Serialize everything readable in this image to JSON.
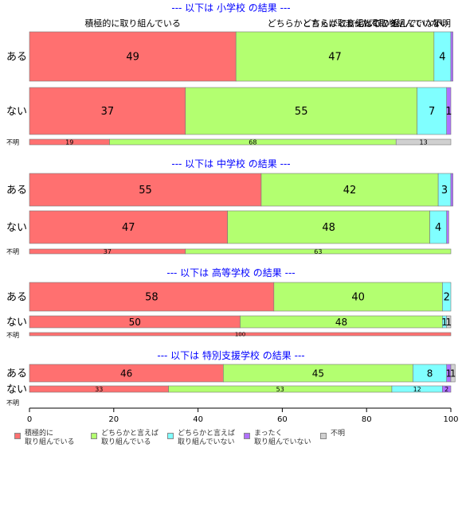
{
  "chart_data": {
    "type": "bar",
    "orientation": "horizontal",
    "stacked": true,
    "xlim": [
      0,
      100
    ],
    "x_ticks": [
      0,
      20,
      40,
      60,
      80,
      100
    ],
    "series_names": [
      "積極的に\n取り組んでいる",
      "どちらかと言えば\n取り組んでいる",
      "どちらかと言えば\n取り組んでいない",
      "まったく\n取り組んでいない",
      "不明"
    ],
    "colors": [
      "#ff7070",
      "#b3ff70",
      "#80ffff",
      "#b070ff",
      "#d0d0d0"
    ],
    "legend_placement": "bottom",
    "top_headers": [
      {
        "text": "積極的に取り組んでいる",
        "x": 24.5
      },
      {
        "text": "どちらかと言えば取り組んでいる",
        "x": 72
      },
      {
        "text": "どちらかと言えば取り組んでいない",
        "x": 98
      },
      {
        "text": "まったく取り組んでいない",
        "x": 99.5
      },
      {
        "text": "不明",
        "x": 100
      }
    ],
    "panels": [
      {
        "title": "--- 以下は 小学校 の結果 ---",
        "rows": [
          {
            "label": "ある",
            "values": [
              49,
              47,
              4,
              0.5,
              0
            ],
            "labels": [
              "49",
              "47",
              "4",
              "",
              ""
            ]
          },
          {
            "label": "ない",
            "values": [
              37,
              55,
              7,
              1,
              0
            ],
            "labels": [
              "37",
              "55",
              "7",
              "1",
              ""
            ]
          },
          {
            "label": "不明",
            "values": [
              19,
              68,
              0,
              0,
              13
            ],
            "labels": [
              "19",
              "68",
              "",
              "",
              "13"
            ]
          }
        ]
      },
      {
        "title": "--- 以下は 中学校 の結果 ---",
        "rows": [
          {
            "label": "ある",
            "values": [
              55,
              42,
              3,
              0.5,
              0
            ],
            "labels": [
              "55",
              "42",
              "3",
              "",
              ""
            ]
          },
          {
            "label": "ない",
            "values": [
              47,
              48,
              4,
              0.5,
              0
            ],
            "labels": [
              "47",
              "48",
              "4",
              "",
              ""
            ]
          },
          {
            "label": "不明",
            "values": [
              37,
              63,
              0,
              0,
              0
            ],
            "labels": [
              "37",
              "63",
              "",
              "",
              ""
            ]
          }
        ]
      },
      {
        "title": "--- 以下は 高等学校 の結果 ---",
        "rows": [
          {
            "label": "ある",
            "values": [
              58,
              40,
              2,
              0,
              0
            ],
            "labels": [
              "58",
              "40",
              "2",
              "",
              ""
            ]
          },
          {
            "label": "ない",
            "values": [
              50,
              48,
              1,
              0,
              1
            ],
            "labels": [
              "50",
              "48",
              "1",
              "",
              "1"
            ]
          },
          {
            "label": "不明",
            "values": [
              100,
              0,
              0,
              0,
              0
            ],
            "labels": [
              "100",
              "",
              "",
              "",
              ""
            ]
          }
        ]
      },
      {
        "title": "--- 以下は 特別支援学校 の結果 ---",
        "rows": [
          {
            "label": "ある",
            "values": [
              46,
              45,
              8,
              1,
              1
            ],
            "labels": [
              "46",
              "45",
              "8",
              "1",
              "1"
            ]
          },
          {
            "label": "ない",
            "values": [
              33,
              53,
              12,
              2,
              0
            ],
            "labels": [
              "33",
              "53",
              "12",
              "2",
              ""
            ]
          },
          {
            "label": "不明",
            "values": [
              0,
              0,
              0,
              0,
              0
            ],
            "labels": [
              "",
              "",
              "",
              "",
              ""
            ]
          }
        ]
      }
    ]
  }
}
